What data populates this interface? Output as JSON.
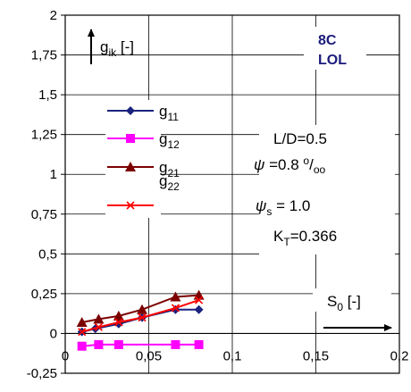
{
  "chart_data": {
    "type": "line",
    "xlim": [
      0,
      0.2
    ],
    "ylim": [
      -0.25,
      2
    ],
    "x_ticks": [
      "0",
      "0,05",
      "0,1",
      "0,15",
      "0,2"
    ],
    "y_ticks": [
      "2",
      "1,75",
      "1,5",
      "1,25",
      "1",
      "0,75",
      "0,5",
      "0,25",
      "0",
      "-0,25"
    ],
    "grid": true,
    "ylabel": {
      "main": "g",
      "sub": "ik",
      "unit": " [-]"
    },
    "xlabel": {
      "main": "S",
      "sub": "0",
      "unit": " [-]"
    },
    "brand": [
      "8C",
      "LOL"
    ],
    "annotations": {
      "ld": "L/D=0.5",
      "psi_symbol": "ψ",
      "psi_value": " =0.8 ",
      "psi_unit_num": "o",
      "psi_unit_den": "oo",
      "psis_symbol": "ψ",
      "psis_sub": "s",
      "psis_value": " = 1.0",
      "kt_main": "K",
      "kt_sub": "T",
      "kt_value": "=0.366"
    },
    "series": [
      {
        "name": "g",
        "sub": "11",
        "color": "#1a237e",
        "marker": "diamond",
        "x": [
          0.01,
          0.018,
          0.032,
          0.046,
          0.066,
          0.08
        ],
        "y": [
          0.01,
          0.03,
          0.06,
          0.1,
          0.15,
          0.15
        ]
      },
      {
        "name": "g",
        "sub": "12",
        "color": "#ff00ff",
        "marker": "square",
        "x": [
          0.01,
          0.02,
          0.032,
          0.066,
          0.08
        ],
        "y": [
          -0.08,
          -0.07,
          -0.07,
          -0.07,
          -0.07
        ]
      },
      {
        "name": "g",
        "sub": "21",
        "color": "#7b0000",
        "marker": "triangle",
        "x": [
          0.01,
          0.02,
          0.032,
          0.046,
          0.066,
          0.08
        ],
        "y": [
          0.07,
          0.09,
          0.11,
          0.15,
          0.23,
          0.24
        ]
      },
      {
        "name": "g",
        "sub": "22",
        "color": "#ff0000",
        "marker": "x",
        "x": [
          0.01,
          0.02,
          0.032,
          0.046,
          0.066,
          0.08
        ],
        "y": [
          0.01,
          0.04,
          0.07,
          0.1,
          0.16,
          0.21
        ]
      }
    ]
  }
}
